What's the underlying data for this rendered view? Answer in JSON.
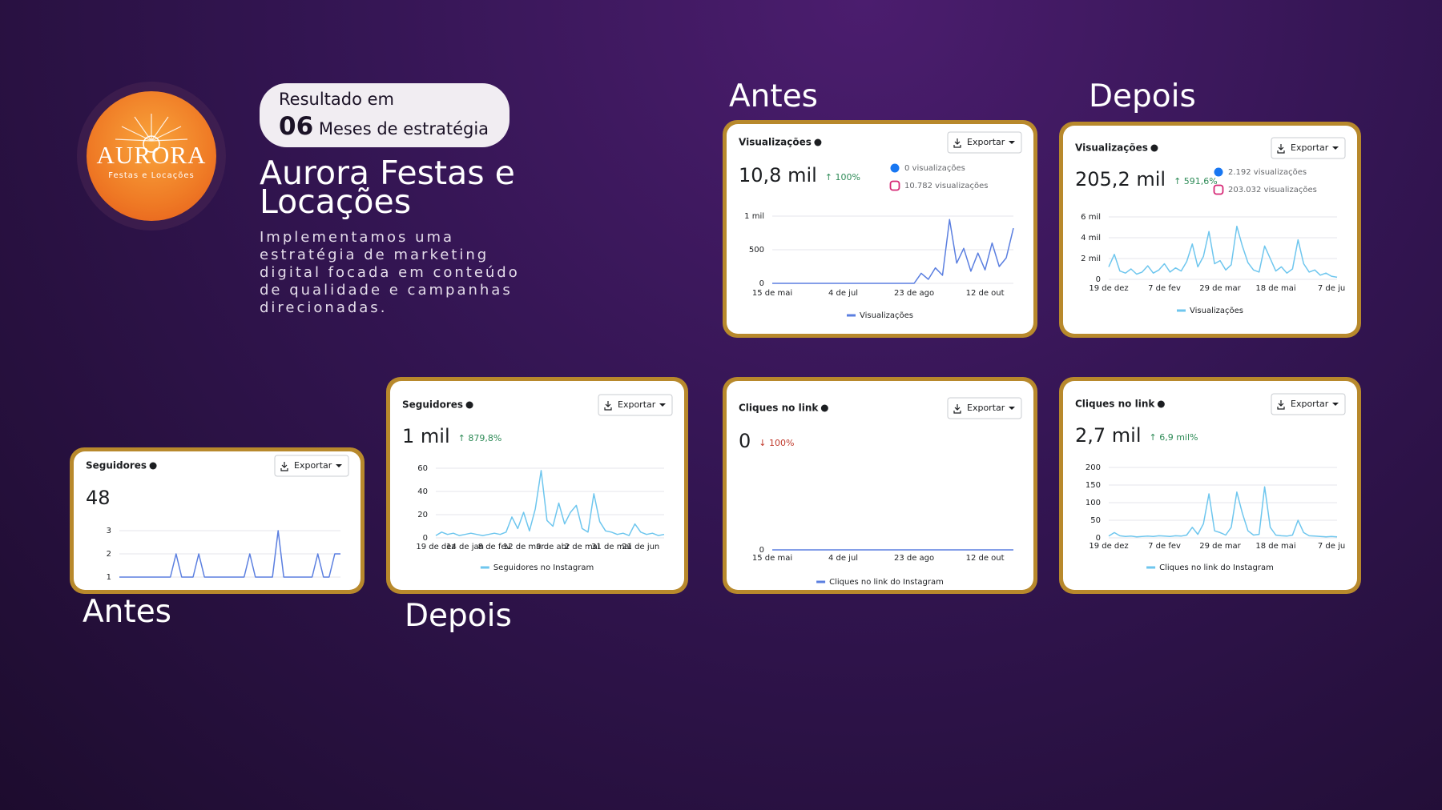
{
  "brand": {
    "name": "AURORA",
    "tagline": "Festas e Locações"
  },
  "badge": {
    "line1": "Resultado em",
    "number": "06",
    "text": "Meses de estratégia"
  },
  "title": "Aurora Festas e Locações",
  "description": "Implementamos uma estratégia de marketing digital focada em conteúdo de qualidade e campanhas direcionadas.",
  "labels": [
    "Antes",
    "Depois",
    "Antes",
    "Depois"
  ],
  "chart_data": [
    {
      "type": "line",
      "title": "Visualizações",
      "button": "Exportar",
      "value_text": "10,8 mil",
      "change": "↑ 100%",
      "change_color": "#2e8b57",
      "sources": [
        "0 visualizações",
        "10.782 visualizações"
      ],
      "categories": [
        "15 de mai",
        null,
        null,
        null,
        null,
        null,
        null,
        null,
        null,
        null,
        "4 de jul",
        null,
        null,
        null,
        null,
        null,
        null,
        null,
        null,
        null,
        "23 de ago",
        null,
        null,
        null,
        null,
        null,
        null,
        null,
        null,
        null,
        "12 de out",
        null,
        null,
        null,
        null
      ],
      "series": [
        {
          "name": "Visualizações",
          "color": "#5b7fe0",
          "values": [
            0,
            0,
            0,
            0,
            0,
            0,
            0,
            0,
            0,
            0,
            0,
            0,
            0,
            0,
            0,
            0,
            0,
            0,
            0,
            0,
            0,
            150,
            60,
            230,
            120,
            950,
            300,
            520,
            180,
            450,
            200,
            600,
            250,
            380,
            820
          ]
        }
      ],
      "ylim": [
        0,
        1000
      ],
      "yticks": [
        0,
        500,
        {
          "value": 1000,
          "label": "1 mil"
        }
      ],
      "grid": true
    },
    {
      "type": "line",
      "title": "Visualizações",
      "button": "Exportar",
      "value_text": "205,2 mil",
      "change": "↑ 591,6%",
      "change_color": "#2e8b57",
      "sources": [
        "2.192 visualizações",
        "203.032 visualizações"
      ],
      "categories": [
        "19 de dez",
        null,
        null,
        null,
        null,
        null,
        null,
        null,
        null,
        null,
        "7 de fev",
        null,
        null,
        null,
        null,
        null,
        null,
        null,
        null,
        null,
        "29 de mar",
        null,
        null,
        null,
        null,
        null,
        null,
        null,
        null,
        null,
        "18 de mai",
        null,
        null,
        null,
        null,
        null,
        null,
        null,
        null,
        null,
        "7 de ju",
        null
      ],
      "series": [
        {
          "name": "Visualizações",
          "color": "#6ec6ee",
          "values": [
            1200,
            2400,
            800,
            600,
            1000,
            500,
            700,
            1300,
            600,
            900,
            1500,
            700,
            1100,
            800,
            1700,
            3400,
            1200,
            2200,
            4600,
            1500,
            1800,
            900,
            1400,
            5100,
            3200,
            1600,
            900,
            700,
            3200,
            2000,
            800,
            1200,
            600,
            1000,
            3800,
            1500,
            700,
            900,
            400,
            600,
            300,
            200
          ]
        }
      ],
      "ylim": [
        0,
        6000
      ],
      "yticks": [
        0,
        {
          "value": 2000,
          "label": "2 mil"
        },
        {
          "value": 4000,
          "label": "4 mil"
        },
        {
          "value": 6000,
          "label": "6 mil"
        }
      ],
      "grid": true
    },
    {
      "type": "line",
      "title": "Seguidores",
      "button": "Exportar",
      "value_text": "48",
      "series": [
        {
          "color": "#5b7fe0",
          "values": [
            1,
            1,
            1,
            1,
            1,
            1,
            1,
            1,
            1,
            1,
            2,
            1,
            1,
            1,
            2,
            1,
            1,
            1,
            1,
            1,
            1,
            1,
            1,
            2,
            1,
            1,
            1,
            1,
            3,
            1,
            1,
            1,
            1,
            1,
            1,
            2,
            1,
            1,
            2,
            2
          ]
        }
      ],
      "ylim": [
        1,
        3
      ],
      "yticks": [
        1,
        2,
        3
      ],
      "grid": true
    },
    {
      "type": "line",
      "title": "Seguidores",
      "button": "Exportar",
      "value_text": "1 mil",
      "change": "↑ 879,8%",
      "change_color": "#2e8b57",
      "categories": [
        "19 de dez",
        null,
        null,
        null,
        null,
        "14 de jan",
        null,
        null,
        null,
        null,
        "8 de fev",
        null,
        null,
        null,
        null,
        "12 de mar",
        null,
        null,
        null,
        null,
        "9 de abr",
        null,
        null,
        null,
        null,
        "2 de mai",
        null,
        null,
        null,
        null,
        "31 de mai",
        null,
        null,
        null,
        null,
        "21 de jun",
        null,
        null,
        null,
        null
      ],
      "series": [
        {
          "name": "Seguidores no Instagram",
          "color": "#6ec6ee",
          "values": [
            2,
            5,
            3,
            4,
            2,
            3,
            4,
            3,
            2,
            3,
            4,
            3,
            5,
            18,
            8,
            22,
            6,
            25,
            58,
            15,
            10,
            30,
            12,
            22,
            28,
            8,
            5,
            38,
            14,
            6,
            5,
            3,
            4,
            2,
            12,
            5,
            3,
            4,
            2,
            3
          ]
        }
      ],
      "ylim": [
        0,
        60
      ],
      "yticks": [
        0,
        20,
        40,
        60
      ],
      "grid": true
    },
    {
      "type": "line",
      "title": "Cliques no link",
      "button": "Exportar",
      "value_text": "0",
      "change": "↓ 100%",
      "change_color": "#c0392b",
      "categories": [
        "15 de mai",
        null,
        null,
        null,
        null,
        null,
        null,
        null,
        null,
        null,
        "4 de jul",
        null,
        null,
        null,
        null,
        null,
        null,
        null,
        null,
        null,
        "23 de ago",
        null,
        null,
        null,
        null,
        null,
        null,
        null,
        null,
        null,
        "12 de out",
        null,
        null,
        null,
        null
      ],
      "series": [
        {
          "name": "Cliques no link do Instagram",
          "color": "#5b7fe0",
          "values": [
            0,
            0,
            0,
            0,
            0,
            0,
            0,
            0,
            0,
            0,
            0,
            0,
            0,
            0,
            0,
            0,
            0,
            0,
            0,
            0,
            0,
            0,
            0,
            0,
            0,
            0,
            0,
            0,
            0,
            0,
            0,
            0,
            0,
            0,
            0
          ]
        }
      ],
      "ylim": [
        0,
        1
      ],
      "yticks": [
        0
      ],
      "grid": true
    },
    {
      "type": "line",
      "title": "Cliques no link",
      "button": "Exportar",
      "value_text": "2,7 mil",
      "change": "↑ 6,9 mil%",
      "change_color": "#2e8b57",
      "categories": [
        "19 de dez",
        null,
        null,
        null,
        null,
        null,
        null,
        null,
        null,
        null,
        "7 de fev",
        null,
        null,
        null,
        null,
        null,
        null,
        null,
        null,
        null,
        "29 de mar",
        null,
        null,
        null,
        null,
        null,
        null,
        null,
        null,
        null,
        "18 de mai",
        null,
        null,
        null,
        null,
        null,
        null,
        null,
        null,
        null,
        "7 de ju",
        null
      ],
      "series": [
        {
          "name": "Cliques no link do Instagram",
          "color": "#6ec6ee",
          "values": [
            5,
            15,
            6,
            4,
            5,
            3,
            4,
            5,
            4,
            6,
            5,
            4,
            6,
            5,
            8,
            30,
            10,
            40,
            125,
            20,
            15,
            8,
            30,
            130,
            70,
            20,
            8,
            10,
            145,
            30,
            8,
            6,
            5,
            8,
            50,
            15,
            6,
            5,
            4,
            3,
            4,
            3
          ]
        }
      ],
      "ylim": [
        0,
        200
      ],
      "yticks": [
        0,
        50,
        100,
        150,
        200
      ],
      "grid": true
    }
  ]
}
